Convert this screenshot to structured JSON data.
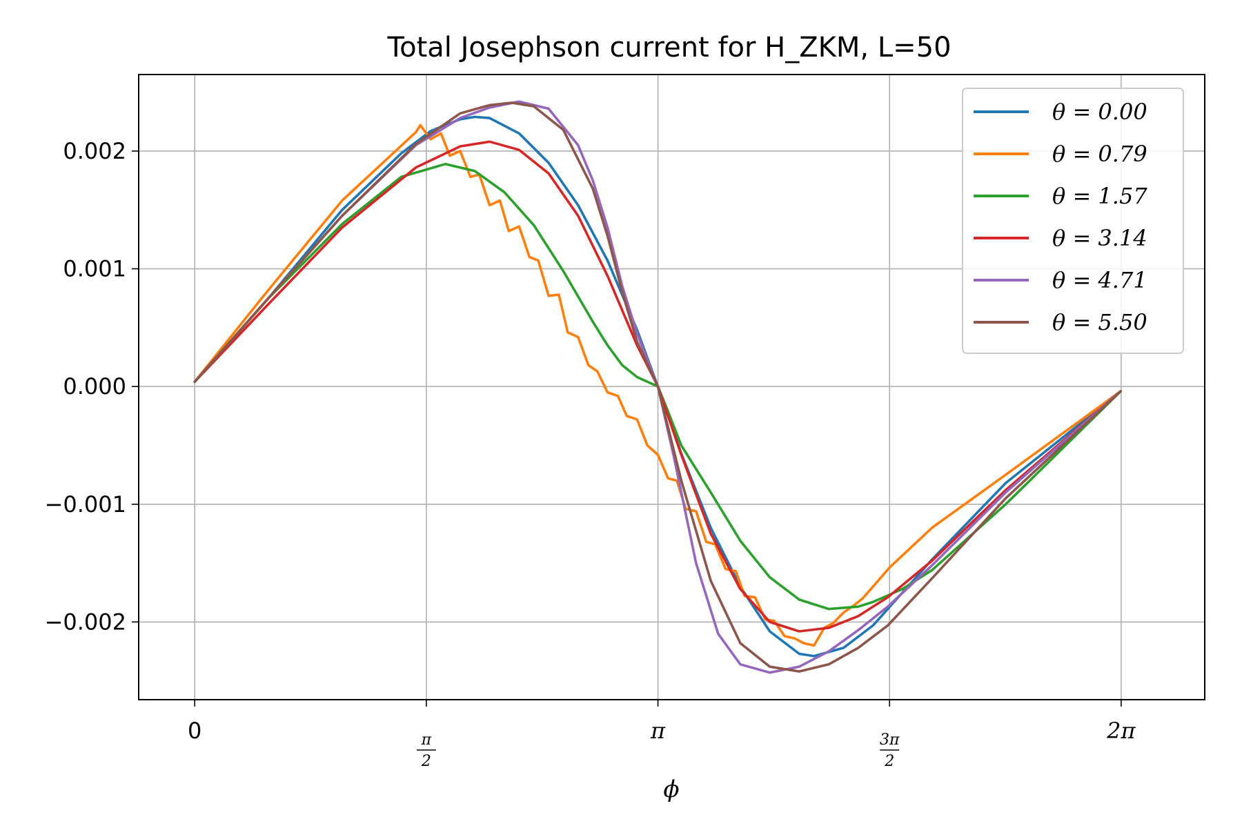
{
  "chart_data": {
    "type": "line",
    "title": "Total Josephson current for H_ZKM, L=50",
    "xlabel": "ϕ",
    "ylabel": "",
    "xlim": [
      -0.38,
      6.85
    ],
    "ylim": [
      -0.00266,
      0.00265
    ],
    "grid": true,
    "legend_position": "top-right",
    "x_ticks": [
      {
        "value": 0,
        "label": "0",
        "kind": "plain"
      },
      {
        "value": 1.5708,
        "num": "π",
        "den": "2",
        "kind": "frac"
      },
      {
        "value": 3.1416,
        "label": "π",
        "kind": "plain"
      },
      {
        "value": 4.7124,
        "num": "3π",
        "den": "2",
        "kind": "frac"
      },
      {
        "value": 6.2832,
        "label": "2π",
        "kind": "plain"
      }
    ],
    "y_ticks": [
      {
        "value": 0.002,
        "label": "0.002"
      },
      {
        "value": 0.001,
        "label": "0.001"
      },
      {
        "value": 0.0,
        "label": "0.000"
      },
      {
        "value": -0.001,
        "label": "−0.001"
      },
      {
        "value": -0.002,
        "label": "−0.002"
      }
    ],
    "series": [
      {
        "name": "θ = 0.00",
        "color": "#1f77b4",
        "x": [
          0,
          0.5,
          1.0,
          1.4,
          1.6,
          1.8,
          1.9,
          2.0,
          2.2,
          2.4,
          2.6,
          2.8,
          3.0,
          3.1416,
          3.3,
          3.5,
          3.7,
          3.9,
          4.1,
          4.2,
          4.4,
          4.6,
          5.0,
          5.5,
          6.28
        ],
        "y": [
          4e-05,
          0.00075,
          0.0015,
          0.00198,
          0.00217,
          0.00227,
          0.00229,
          0.00228,
          0.00215,
          0.0019,
          0.00154,
          0.00107,
          0.00048,
          0.0,
          -0.00057,
          -0.0012,
          -0.0017,
          -0.00208,
          -0.00227,
          -0.00229,
          -0.00222,
          -0.00203,
          -0.00147,
          -0.00082,
          -4e-05
        ]
      },
      {
        "name": "θ = 0.79",
        "color": "#ff7f0e",
        "x": [
          0,
          0.5,
          1.0,
          1.5,
          1.53,
          1.6,
          1.67,
          1.73,
          1.8,
          1.87,
          1.93,
          2.0,
          2.07,
          2.13,
          2.2,
          2.27,
          2.33,
          2.4,
          2.47,
          2.53,
          2.6,
          2.67,
          2.73,
          2.8,
          2.87,
          2.93,
          3.0,
          3.07,
          3.1416,
          3.21,
          3.27,
          3.33,
          3.4,
          3.47,
          3.53,
          3.6,
          3.67,
          3.73,
          3.8,
          3.87,
          3.93,
          4.0,
          4.07,
          4.13,
          4.2,
          4.27,
          4.33,
          4.4,
          4.47,
          4.53,
          4.6,
          4.67,
          4.71,
          5.0,
          5.5,
          6.28
        ],
        "y": [
          4e-05,
          0.00082,
          0.00158,
          0.00216,
          0.00222,
          0.0021,
          0.00215,
          0.00196,
          0.002,
          0.00178,
          0.0018,
          0.00154,
          0.00158,
          0.00132,
          0.00136,
          0.0011,
          0.00107,
          0.00077,
          0.00078,
          0.00046,
          0.00042,
          0.00018,
          0.00013,
          -5e-05,
          -8e-05,
          -0.00025,
          -0.00028,
          -0.0005,
          -0.00058,
          -0.00078,
          -0.0008,
          -0.00104,
          -0.00106,
          -0.00132,
          -0.00134,
          -0.00155,
          -0.00157,
          -0.00178,
          -0.00179,
          -0.00198,
          -0.00199,
          -0.00212,
          -0.00214,
          -0.00218,
          -0.0022,
          -0.00205,
          -0.00201,
          -0.00192,
          -0.00186,
          -0.0018,
          -0.0017,
          -0.0016,
          -0.00154,
          -0.0012,
          -0.00075,
          -4e-05
        ]
      },
      {
        "name": "θ = 1.57",
        "color": "#2ca02c",
        "x": [
          0,
          0.5,
          1.0,
          1.4,
          1.7,
          1.9,
          2.1,
          2.3,
          2.5,
          2.7,
          2.8,
          2.9,
          3.0,
          3.1416,
          3.2,
          3.3,
          3.5,
          3.7,
          3.9,
          4.1,
          4.3,
          4.5,
          4.6,
          4.8,
          5.0,
          5.5,
          6.28
        ],
        "y": [
          4e-05,
          0.00075,
          0.00138,
          0.00178,
          0.00189,
          0.00183,
          0.00165,
          0.00137,
          0.00098,
          0.00055,
          0.00035,
          0.00018,
          8e-05,
          0.0,
          -0.00018,
          -0.0005,
          -0.0009,
          -0.00131,
          -0.00162,
          -0.00181,
          -0.00189,
          -0.00187,
          -0.00183,
          -0.00172,
          -0.00156,
          -0.001,
          -4e-05
        ]
      },
      {
        "name": "θ = 3.14",
        "color": "#d62728",
        "x": [
          0,
          0.5,
          1.0,
          1.5,
          1.8,
          2.0,
          2.2,
          2.4,
          2.6,
          2.8,
          3.0,
          3.1416,
          3.3,
          3.5,
          3.7,
          3.9,
          4.1,
          4.3,
          4.5,
          4.7,
          5.0,
          5.5,
          6.28
        ],
        "y": [
          4e-05,
          0.0007,
          0.00135,
          0.00186,
          0.00204,
          0.00208,
          0.00201,
          0.00181,
          0.00145,
          0.00094,
          0.00035,
          0.0,
          -0.00058,
          -0.00125,
          -0.00172,
          -0.002,
          -0.00208,
          -0.00205,
          -0.00195,
          -0.00179,
          -0.00148,
          -0.00088,
          -4e-05
        ]
      },
      {
        "name": "θ = 4.71",
        "color": "#9467bd",
        "x": [
          0,
          0.5,
          1.0,
          1.5,
          1.8,
          2.0,
          2.2,
          2.4,
          2.6,
          2.7,
          2.8,
          2.9,
          3.0,
          3.1416,
          3.25,
          3.4,
          3.55,
          3.7,
          3.9,
          4.1,
          4.3,
          4.5,
          4.7,
          5.0,
          5.5,
          6.28
        ],
        "y": [
          4e-05,
          0.00075,
          0.00145,
          0.00205,
          0.00228,
          0.00237,
          0.00242,
          0.00236,
          0.00205,
          0.00175,
          0.00135,
          0.00085,
          0.00045,
          0.0,
          -0.0006,
          -0.0015,
          -0.0021,
          -0.00236,
          -0.00243,
          -0.00238,
          -0.00225,
          -0.00207,
          -0.00187,
          -0.00152,
          -0.0009,
          -4e-05
        ]
      },
      {
        "name": "θ = 5.50",
        "color": "#8c564b",
        "x": [
          0,
          0.5,
          1.0,
          1.5,
          1.8,
          2.0,
          2.15,
          2.3,
          2.5,
          2.7,
          2.8,
          2.9,
          3.0,
          3.1416,
          3.3,
          3.5,
          3.7,
          3.9,
          4.1,
          4.3,
          4.5,
          4.7,
          5.0,
          5.5,
          6.28
        ],
        "y": [
          4e-05,
          0.00075,
          0.00145,
          0.00206,
          0.00232,
          0.00239,
          0.00241,
          0.00238,
          0.00218,
          0.00168,
          0.00128,
          0.0008,
          0.00038,
          0.0,
          -0.0008,
          -0.00165,
          -0.00218,
          -0.00238,
          -0.00242,
          -0.00236,
          -0.00222,
          -0.00203,
          -0.00163,
          -0.00095,
          -4e-05
        ]
      }
    ]
  }
}
